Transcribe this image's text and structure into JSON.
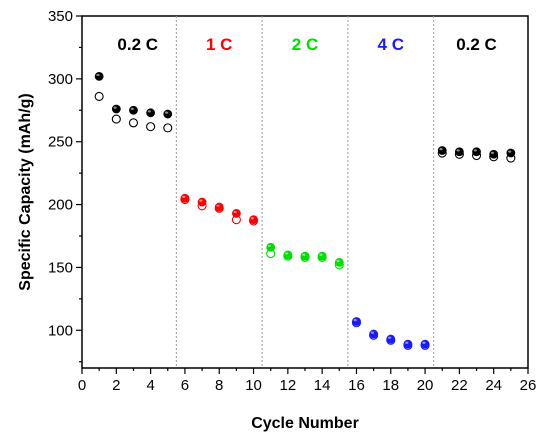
{
  "chart_data": {
    "type": "scatter",
    "xlabel": "Cycle Number",
    "ylabel": "Specific Capacity (mAh/g)",
    "xlim": [
      0,
      26
    ],
    "ylim": [
      70,
      350
    ],
    "xticks": [
      "0",
      "2",
      "4",
      "6",
      "8",
      "10",
      "12",
      "14",
      "16",
      "18",
      "20",
      "22",
      "24",
      "26"
    ],
    "yticks": [
      "100",
      "150",
      "200",
      "250",
      "300",
      "350"
    ],
    "grid": false,
    "legend": "none",
    "separators": [
      5.5,
      10.5,
      15.5,
      20.5
    ],
    "rate_labels": [
      {
        "text": "0.2 C",
        "x": 3.25,
        "color": "#000000"
      },
      {
        "text": "1 C",
        "x": 8.0,
        "color": "#ff0000"
      },
      {
        "text": "2 C",
        "x": 13.0,
        "color": "#00dd00"
      },
      {
        "text": "4 C",
        "x": 18.0,
        "color": "#1a1aff"
      },
      {
        "text": "0.2 C",
        "x": 23.0,
        "color": "#000000"
      }
    ],
    "series": [
      {
        "marker": "filled",
        "x": [
          1,
          2,
          3,
          4,
          5,
          6,
          7,
          8,
          9,
          10,
          11,
          12,
          13,
          14,
          15,
          16,
          17,
          18,
          19,
          20,
          21,
          22,
          23,
          24,
          25
        ],
        "values": [
          302,
          276,
          275,
          273,
          272,
          205,
          202,
          198,
          193,
          188,
          166,
          160,
          159,
          159,
          154,
          107,
          97,
          93,
          89,
          89,
          243,
          242,
          242,
          240,
          241
        ],
        "colors": [
          "#000000",
          "#000000",
          "#000000",
          "#000000",
          "#000000",
          "#ff0000",
          "#ff0000",
          "#ff0000",
          "#ff0000",
          "#ff0000",
          "#00dd00",
          "#00dd00",
          "#00dd00",
          "#00dd00",
          "#00dd00",
          "#1a1aff",
          "#1a1aff",
          "#1a1aff",
          "#1a1aff",
          "#1a1aff",
          "#000000",
          "#000000",
          "#000000",
          "#000000",
          "#000000"
        ]
      },
      {
        "marker": "open",
        "x": [
          1,
          2,
          3,
          4,
          5,
          6,
          7,
          8,
          9,
          10,
          11,
          12,
          13,
          14,
          15,
          16,
          17,
          18,
          19,
          20,
          21,
          22,
          23,
          24,
          25
        ],
        "values": [
          286,
          268,
          265,
          262,
          261,
          204,
          199,
          197,
          188,
          187,
          161,
          159,
          158,
          158,
          152,
          106,
          96,
          92,
          88,
          88,
          241,
          240,
          239,
          238,
          237
        ],
        "colors": [
          "#000000",
          "#000000",
          "#000000",
          "#000000",
          "#000000",
          "#ff0000",
          "#ff0000",
          "#ff0000",
          "#ff0000",
          "#ff0000",
          "#00dd00",
          "#00dd00",
          "#00dd00",
          "#00dd00",
          "#00dd00",
          "#1a1aff",
          "#1a1aff",
          "#1a1aff",
          "#1a1aff",
          "#1a1aff",
          "#000000",
          "#000000",
          "#000000",
          "#000000",
          "#000000"
        ]
      }
    ]
  }
}
